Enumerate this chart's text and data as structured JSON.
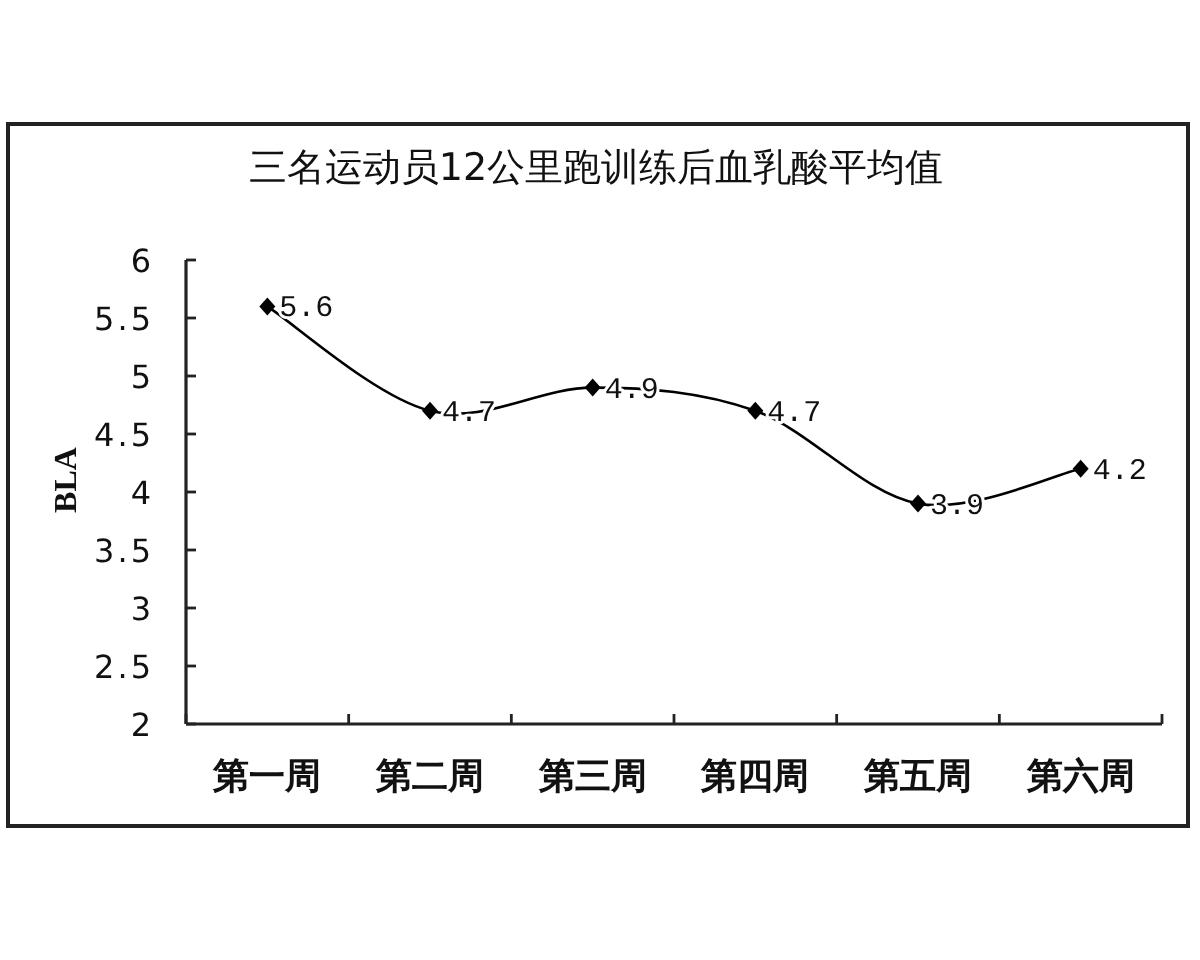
{
  "chart_data": {
    "type": "line",
    "title": "三名运动员12公里跑训练后血乳酸平均值",
    "ylabel": "BLA",
    "categories": [
      "第一周",
      "第二周",
      "第三周",
      "第四周",
      "第五周",
      "第六周"
    ],
    "series": [
      {
        "color": "#000000",
        "values": [
          5.6,
          4.7,
          4.9,
          4.7,
          3.9,
          4.2
        ]
      }
    ],
    "ylim": [
      2,
      6
    ],
    "yticks": [
      2,
      2.5,
      3,
      3.5,
      4,
      4.5,
      5,
      5.5,
      6
    ],
    "data_labels": true,
    "marker": "diamond",
    "line_style": "solid",
    "grid": false
  }
}
